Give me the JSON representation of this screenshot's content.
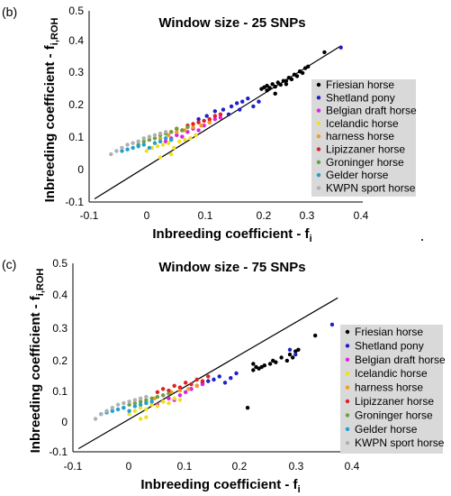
{
  "chart_data": [
    {
      "type": "scatter",
      "panel_label": "(b)",
      "title": "Window size - 25 SNPs",
      "xlabel": "Inbreeding coefficient - f",
      "xlabel_sub": "i",
      "ylabel": "Inbreeding coefficient - f",
      "ylabel_sub": "i,ROH",
      "xlim": [
        -0.1,
        0.4
      ],
      "ylim": [
        -0.1,
        0.5
      ],
      "xticks": [
        "-0.1",
        "0",
        "0.1",
        "0.2",
        "0.3",
        "0.4"
      ],
      "yticks": [
        "-0.1",
        "0",
        "0.1",
        "0.2",
        "0.3",
        "0.4",
        "0.5"
      ],
      "reference_line": {
        "x": [
          -0.09,
          0.36
        ],
        "y": [
          -0.09,
          0.39
        ]
      },
      "legend_position": "right",
      "series": [
        {
          "name": "Friesian horse",
          "color": "#000000",
          "x": [
            0.215,
            0.22,
            0.225,
            0.23,
            0.235,
            0.24,
            0.245,
            0.25,
            0.255,
            0.26,
            0.265,
            0.27,
            0.275,
            0.28,
            0.285,
            0.29,
            0.295,
            0.3,
            0.225,
            0.24,
            0.26,
            0.33
          ],
          "y": [
            0.255,
            0.26,
            0.265,
            0.258,
            0.27,
            0.262,
            0.275,
            0.268,
            0.28,
            0.27,
            0.29,
            0.285,
            0.3,
            0.295,
            0.31,
            0.305,
            0.32,
            0.325,
            0.25,
            0.24,
            0.28,
            0.37
          ]
        },
        {
          "name": "Shetland pony",
          "color": "#1f1fc8",
          "x": [
            0.1,
            0.115,
            0.13,
            0.145,
            0.16,
            0.17,
            0.18,
            0.19,
            0.2,
            0.21,
            0.175,
            0.155,
            0.36
          ],
          "y": [
            0.16,
            0.17,
            0.185,
            0.19,
            0.2,
            0.21,
            0.215,
            0.225,
            0.2,
            0.215,
            0.19,
            0.175,
            0.385
          ]
        },
        {
          "name": "Belgian draft horse",
          "color": "#e020e0",
          "x": [
            0.04,
            0.05,
            0.06,
            0.07,
            0.08,
            0.09,
            0.1,
            0.11,
            0.12,
            0.13,
            0.14
          ],
          "y": [
            0.09,
            0.1,
            0.11,
            0.105,
            0.12,
            0.13,
            0.125,
            0.14,
            0.15,
            0.16,
            0.165
          ]
        },
        {
          "name": "Icelandic horse",
          "color": "#f0e020",
          "x": [
            0.005,
            0.015,
            0.025,
            0.035,
            0.045,
            0.055,
            0.065,
            0.075,
            0.085,
            0.095,
            0.03,
            0.05
          ],
          "y": [
            0.06,
            0.07,
            0.075,
            0.08,
            0.085,
            0.07,
            0.09,
            0.095,
            0.1,
            0.11,
            0.04,
            0.05
          ]
        },
        {
          "name": "harness horse",
          "color": "#f0a020",
          "x": [
            0.03,
            0.045,
            0.06,
            0.075,
            0.09,
            0.105,
            0.12
          ],
          "y": [
            0.1,
            0.11,
            0.12,
            0.125,
            0.135,
            0.14,
            0.15
          ]
        },
        {
          "name": "Lipizzaner horse",
          "color": "#e02020",
          "x": [
            0.05,
            0.06,
            0.07,
            0.08,
            0.09,
            0.1,
            0.11,
            0.12,
            0.13,
            0.14
          ],
          "y": [
            0.12,
            0.13,
            0.125,
            0.14,
            0.145,
            0.15,
            0.155,
            0.16,
            0.17,
            0.175
          ]
        },
        {
          "name": "Groninger horse",
          "color": "#70a040",
          "x": [
            -0.01,
            0.0,
            0.01,
            0.02,
            0.03,
            0.04,
            0.05,
            0.06,
            0.07,
            0.08
          ],
          "y": [
            0.08,
            0.09,
            0.095,
            0.1,
            0.11,
            0.115,
            0.12,
            0.13,
            0.125,
            0.135
          ]
        },
        {
          "name": "Gelder horse",
          "color": "#20a0d0",
          "x": [
            -0.04,
            -0.03,
            -0.02,
            -0.01,
            0.0,
            0.01,
            0.02,
            0.03,
            0.04,
            0.05
          ],
          "y": [
            0.06,
            0.065,
            0.07,
            0.075,
            0.08,
            0.07,
            0.085,
            0.09,
            0.1,
            0.095
          ]
        },
        {
          "name": "KWPN sport horse",
          "color": "#b0b0b0",
          "x": [
            -0.06,
            -0.05,
            -0.04,
            -0.03,
            -0.02,
            -0.01,
            0.0,
            0.01,
            0.02,
            0.03,
            0.04
          ],
          "y": [
            0.05,
            0.06,
            0.07,
            0.08,
            0.085,
            0.09,
            0.1,
            0.105,
            0.11,
            0.115,
            0.12
          ]
        }
      ]
    },
    {
      "type": "scatter",
      "panel_label": "(c)",
      "title": "Window size - 75 SNPs",
      "xlabel": "Inbreeding coefficient - f",
      "xlabel_sub": "i",
      "ylabel": "Inbreeding coefficient - f",
      "ylabel_sub": "i,ROH",
      "xlim": [
        -0.1,
        0.4
      ],
      "ylim": [
        -0.1,
        0.5
      ],
      "xticks": [
        "-0.1",
        "0",
        "0.1",
        "0.2",
        "0.3",
        "0.4"
      ],
      "yticks": [
        "-0.1",
        "0",
        "0.1",
        "0.2",
        "0.3",
        "0.4",
        "0.5"
      ],
      "reference_line": {
        "x": [
          -0.09,
          0.37
        ],
        "y": [
          -0.09,
          0.39
        ]
      },
      "legend_position": "right",
      "series": [
        {
          "name": "Friesian horse",
          "color": "#000000",
          "x": [
            0.21,
            0.22,
            0.225,
            0.23,
            0.24,
            0.25,
            0.255,
            0.26,
            0.27,
            0.28,
            0.285,
            0.29,
            0.295,
            0.3,
            0.22,
            0.235,
            0.33
          ],
          "y": [
            0.04,
            0.16,
            0.17,
            0.165,
            0.175,
            0.18,
            0.19,
            0.185,
            0.2,
            0.19,
            0.21,
            0.2,
            0.22,
            0.225,
            0.18,
            0.17,
            0.27
          ]
        },
        {
          "name": "Shetland pony",
          "color": "#1f1fc8",
          "x": [
            0.11,
            0.12,
            0.13,
            0.14,
            0.15,
            0.16,
            0.17,
            0.18,
            0.19,
            0.285,
            0.295,
            0.36
          ],
          "y": [
            0.1,
            0.11,
            0.12,
            0.125,
            0.13,
            0.14,
            0.12,
            0.135,
            0.15,
            0.225,
            0.21,
            0.305
          ]
        },
        {
          "name": "Belgian draft horse",
          "color": "#e020e0",
          "x": [
            0.05,
            0.06,
            0.07,
            0.08,
            0.09,
            0.1,
            0.11,
            0.12,
            0.13
          ],
          "y": [
            0.05,
            0.06,
            0.07,
            0.065,
            0.08,
            0.09,
            0.1,
            0.11,
            0.115
          ]
        },
        {
          "name": "Icelandic horse",
          "color": "#f0e020",
          "x": [
            0.0,
            0.01,
            0.02,
            0.03,
            0.04,
            0.05,
            0.06,
            0.07,
            0.08,
            0.09,
            0.02,
            0.03
          ],
          "y": [
            0.02,
            0.03,
            0.04,
            0.035,
            0.05,
            0.045,
            0.06,
            0.055,
            0.07,
            0.065,
            0.005,
            0.01
          ]
        },
        {
          "name": "harness horse",
          "color": "#f0a020",
          "x": [
            0.03,
            0.045,
            0.06,
            0.075,
            0.09,
            0.105,
            0.12
          ],
          "y": [
            0.06,
            0.07,
            0.08,
            0.09,
            0.095,
            0.1,
            0.11
          ]
        },
        {
          "name": "Lipizzaner horse",
          "color": "#e02020",
          "x": [
            0.05,
            0.06,
            0.07,
            0.08,
            0.09,
            0.1,
            0.11,
            0.12,
            0.13,
            0.14
          ],
          "y": [
            0.09,
            0.1,
            0.095,
            0.11,
            0.105,
            0.12,
            0.115,
            0.13,
            0.125,
            0.14
          ]
        },
        {
          "name": "Groninger horse",
          "color": "#70a040",
          "x": [
            -0.01,
            0.0,
            0.01,
            0.02,
            0.03,
            0.04,
            0.05,
            0.06,
            0.07
          ],
          "y": [
            0.04,
            0.05,
            0.055,
            0.06,
            0.065,
            0.07,
            0.075,
            0.08,
            0.085
          ]
        },
        {
          "name": "Gelder horse",
          "color": "#20a0d0",
          "x": [
            -0.05,
            -0.04,
            -0.03,
            -0.02,
            -0.01,
            0.0,
            0.01,
            0.02,
            0.03,
            0.04
          ],
          "y": [
            0.02,
            0.025,
            0.03,
            0.035,
            0.04,
            0.03,
            0.045,
            0.05,
            0.055,
            0.06
          ]
        },
        {
          "name": "KWPN sport horse",
          "color": "#b0b0b0",
          "x": [
            -0.06,
            -0.05,
            -0.04,
            -0.03,
            -0.02,
            -0.01,
            0.0,
            0.01,
            0.02,
            0.03
          ],
          "y": [
            0.005,
            0.02,
            0.03,
            0.04,
            0.05,
            0.055,
            0.06,
            0.065,
            0.07,
            0.075
          ]
        }
      ]
    }
  ]
}
